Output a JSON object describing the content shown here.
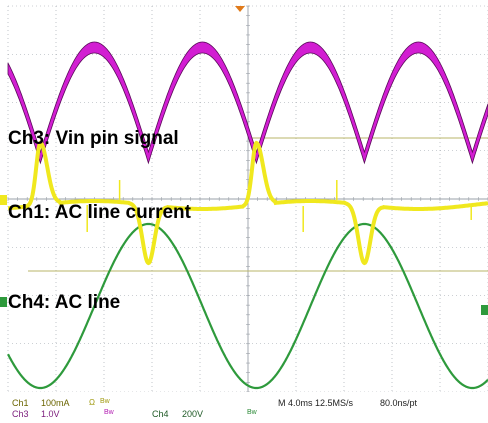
{
  "colors": {
    "ch1": "#f0e81e",
    "ch3": "#d21ed2",
    "ch4": "#2e9a3c",
    "grid": "#9aa0a8",
    "trigger": "#b8b46a",
    "background": "#ffffff"
  },
  "labels": {
    "ch3": "Ch3: Vin pin signal",
    "ch1": "Ch1: AC line current",
    "ch4": "Ch4: AC line"
  },
  "readout": {
    "ch1_name": "Ch1",
    "ch1_scale": "100mA",
    "ch1_cpl": "Ω",
    "ch1_bw": "Bw",
    "ch3_name": "Ch3",
    "ch3_scale": "1.0V",
    "ch3_bw": "Bw",
    "ch4_name": "Ch4",
    "ch4_scale": "200V",
    "ch4_bw": "Bw",
    "timebase": "M 4.0ms 12.5MS/s",
    "resolution": "80.0ns/pt"
  },
  "chart_data": {
    "type": "line",
    "title": "",
    "xlabel": "",
    "ylabel": "",
    "grid": true,
    "x_unit": "ms",
    "x_range": [
      0,
      40
    ],
    "divisions": {
      "horizontal": 10,
      "vertical": 8
    },
    "series": [
      {
        "name": "Ch3: Vin pin signal",
        "channel": "Ch3",
        "shape": "full-wave rectified sine, thick band",
        "peaks_ms": [
          7.2,
          16.2,
          25.2,
          34.2
        ],
        "valleys_ms": [
          2.7,
          11.7,
          20.7,
          29.7,
          38.7
        ]
      },
      {
        "name": "Ch1: AC line current",
        "channel": "Ch1",
        "shape": "narrow pulses near line peaks",
        "positive_pulses_ms": [
          2.7,
          20.7
        ],
        "negative_pulses_ms": [
          11.7,
          29.7
        ]
      },
      {
        "name": "Ch4: AC line",
        "channel": "Ch4",
        "shape": "sine",
        "period_ms": 18.0,
        "peaks_ms": [
          11.7,
          29.7
        ],
        "troughs_ms": [
          2.7,
          20.7,
          38.7
        ]
      }
    ]
  }
}
